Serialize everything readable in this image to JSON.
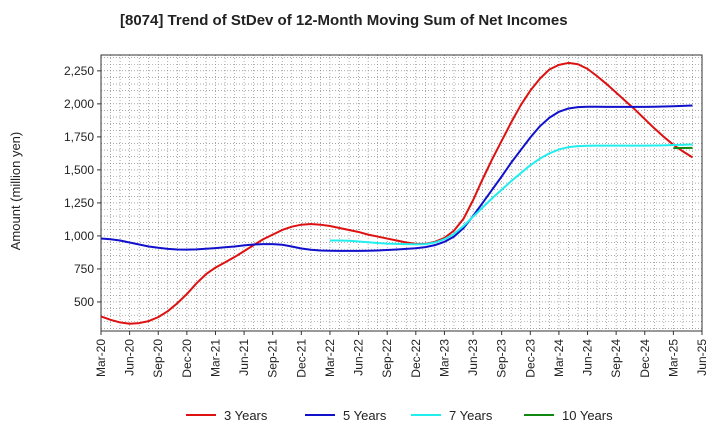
{
  "chart_data": {
    "type": "line",
    "title": "[8074]  Trend of StDev of 12-Month Moving Sum of Net Incomes",
    "ylabel": "Amount (million yen)",
    "xlabel": "",
    "ylim": [
      280,
      2370
    ],
    "yticks": [
      500,
      750,
      1000,
      1250,
      1500,
      1750,
      2000,
      2250
    ],
    "ytick_labels": [
      "500",
      "750",
      "1,000",
      "1,250",
      "1,500",
      "1,750",
      "2,000",
      "2,250"
    ],
    "x_range": [
      "2020-03",
      "2025-06"
    ],
    "xtick_labels": [
      "Mar-20",
      "Jun-20",
      "Sep-20",
      "Dec-20",
      "Mar-21",
      "Jun-21",
      "Sep-21",
      "Dec-21",
      "Mar-22",
      "Jun-22",
      "Sep-22",
      "Dec-22",
      "Mar-23",
      "Jun-23",
      "Sep-23",
      "Dec-23",
      "Mar-24",
      "Jun-24",
      "Sep-24",
      "Dec-24",
      "Mar-25",
      "Jun-25"
    ],
    "grid": true,
    "legend_position": "bottom",
    "series": [
      {
        "name": "3 Years",
        "color": "#dd1111",
        "points": [
          [
            "2020-03",
            390
          ],
          [
            "2020-04",
            365
          ],
          [
            "2020-05",
            345
          ],
          [
            "2020-06",
            335
          ],
          [
            "2020-07",
            340
          ],
          [
            "2020-08",
            355
          ],
          [
            "2020-09",
            385
          ],
          [
            "2020-10",
            430
          ],
          [
            "2020-11",
            490
          ],
          [
            "2020-12",
            560
          ],
          [
            "2021-01",
            640
          ],
          [
            "2021-02",
            710
          ],
          [
            "2021-03",
            760
          ],
          [
            "2021-04",
            800
          ],
          [
            "2021-05",
            840
          ],
          [
            "2021-06",
            885
          ],
          [
            "2021-07",
            930
          ],
          [
            "2021-08",
            975
          ],
          [
            "2021-09",
            1010
          ],
          [
            "2021-10",
            1045
          ],
          [
            "2021-11",
            1070
          ],
          [
            "2021-12",
            1085
          ],
          [
            "2022-01",
            1090
          ],
          [
            "2022-02",
            1085
          ],
          [
            "2022-03",
            1075
          ],
          [
            "2022-04",
            1060
          ],
          [
            "2022-05",
            1045
          ],
          [
            "2022-06",
            1030
          ],
          [
            "2022-07",
            1010
          ],
          [
            "2022-08",
            995
          ],
          [
            "2022-09",
            980
          ],
          [
            "2022-10",
            965
          ],
          [
            "2022-11",
            950
          ],
          [
            "2022-12",
            940
          ],
          [
            "2023-01",
            940
          ],
          [
            "2023-02",
            955
          ],
          [
            "2023-03",
            985
          ],
          [
            "2023-04",
            1040
          ],
          [
            "2023-05",
            1130
          ],
          [
            "2023-06",
            1270
          ],
          [
            "2023-07",
            1430
          ],
          [
            "2023-08",
            1580
          ],
          [
            "2023-09",
            1720
          ],
          [
            "2023-10",
            1860
          ],
          [
            "2023-11",
            1990
          ],
          [
            "2023-12",
            2100
          ],
          [
            "2024-01",
            2190
          ],
          [
            "2024-02",
            2260
          ],
          [
            "2024-03",
            2295
          ],
          [
            "2024-04",
            2310
          ],
          [
            "2024-05",
            2300
          ],
          [
            "2024-06",
            2265
          ],
          [
            "2024-07",
            2210
          ],
          [
            "2024-08",
            2150
          ],
          [
            "2024-09",
            2085
          ],
          [
            "2024-10",
            2020
          ],
          [
            "2024-11",
            1955
          ],
          [
            "2024-12",
            1885
          ],
          [
            "2025-01",
            1815
          ],
          [
            "2025-02",
            1750
          ],
          [
            "2025-03",
            1690
          ],
          [
            "2025-04",
            1640
          ],
          [
            "2025-05",
            1595
          ]
        ]
      },
      {
        "name": "5 Years",
        "color": "#1111cc",
        "points": [
          [
            "2020-03",
            980
          ],
          [
            "2020-04",
            975
          ],
          [
            "2020-05",
            965
          ],
          [
            "2020-06",
            950
          ],
          [
            "2020-07",
            935
          ],
          [
            "2020-08",
            920
          ],
          [
            "2020-09",
            910
          ],
          [
            "2020-10",
            902
          ],
          [
            "2020-11",
            897
          ],
          [
            "2020-12",
            896
          ],
          [
            "2021-01",
            898
          ],
          [
            "2021-02",
            903
          ],
          [
            "2021-03",
            908
          ],
          [
            "2021-04",
            914
          ],
          [
            "2021-05",
            920
          ],
          [
            "2021-06",
            928
          ],
          [
            "2021-07",
            935
          ],
          [
            "2021-08",
            938
          ],
          [
            "2021-09",
            938
          ],
          [
            "2021-10",
            933
          ],
          [
            "2021-11",
            920
          ],
          [
            "2021-12",
            905
          ],
          [
            "2022-01",
            895
          ],
          [
            "2022-02",
            890
          ],
          [
            "2022-03",
            888
          ],
          [
            "2022-04",
            887
          ],
          [
            "2022-05",
            887
          ],
          [
            "2022-06",
            887
          ],
          [
            "2022-07",
            888
          ],
          [
            "2022-08",
            890
          ],
          [
            "2022-09",
            893
          ],
          [
            "2022-10",
            897
          ],
          [
            "2022-11",
            902
          ],
          [
            "2022-12",
            907
          ],
          [
            "2023-01",
            915
          ],
          [
            "2023-02",
            930
          ],
          [
            "2023-03",
            955
          ],
          [
            "2023-04",
            995
          ],
          [
            "2023-05",
            1060
          ],
          [
            "2023-06",
            1150
          ],
          [
            "2023-07",
            1250
          ],
          [
            "2023-08",
            1350
          ],
          [
            "2023-09",
            1450
          ],
          [
            "2023-10",
            1555
          ],
          [
            "2023-11",
            1650
          ],
          [
            "2023-12",
            1745
          ],
          [
            "2024-01",
            1830
          ],
          [
            "2024-02",
            1895
          ],
          [
            "2024-03",
            1940
          ],
          [
            "2024-04",
            1965
          ],
          [
            "2024-05",
            1975
          ],
          [
            "2024-06",
            1978
          ],
          [
            "2024-07",
            1978
          ],
          [
            "2024-08",
            1977
          ],
          [
            "2024-09",
            1977
          ],
          [
            "2024-10",
            1977
          ],
          [
            "2024-11",
            1977
          ],
          [
            "2024-12",
            1977
          ],
          [
            "2025-01",
            1978
          ],
          [
            "2025-02",
            1980
          ],
          [
            "2025-03",
            1982
          ],
          [
            "2025-04",
            1985
          ],
          [
            "2025-05",
            1988
          ]
        ]
      },
      {
        "name": "7 Years",
        "color": "#22eeee",
        "points": [
          [
            "2022-03",
            965
          ],
          [
            "2022-04",
            965
          ],
          [
            "2022-05",
            963
          ],
          [
            "2022-06",
            958
          ],
          [
            "2022-07",
            952
          ],
          [
            "2022-08",
            946
          ],
          [
            "2022-09",
            942
          ],
          [
            "2022-10",
            940
          ],
          [
            "2022-11",
            938
          ],
          [
            "2022-12",
            936
          ],
          [
            "2023-01",
            938
          ],
          [
            "2023-02",
            950
          ],
          [
            "2023-03",
            975
          ],
          [
            "2023-04",
            1015
          ],
          [
            "2023-05",
            1075
          ],
          [
            "2023-06",
            1145
          ],
          [
            "2023-07",
            1215
          ],
          [
            "2023-08",
            1285
          ],
          [
            "2023-09",
            1350
          ],
          [
            "2023-10",
            1415
          ],
          [
            "2023-11",
            1475
          ],
          [
            "2023-12",
            1535
          ],
          [
            "2024-01",
            1585
          ],
          [
            "2024-02",
            1625
          ],
          [
            "2024-03",
            1655
          ],
          [
            "2024-04",
            1672
          ],
          [
            "2024-05",
            1680
          ],
          [
            "2024-06",
            1683
          ],
          [
            "2024-07",
            1684
          ],
          [
            "2024-08",
            1684
          ],
          [
            "2024-09",
            1684
          ],
          [
            "2024-10",
            1684
          ],
          [
            "2024-11",
            1684
          ],
          [
            "2024-12",
            1684
          ],
          [
            "2025-01",
            1685
          ],
          [
            "2025-02",
            1686
          ],
          [
            "2025-03",
            1688
          ],
          [
            "2025-04",
            1690
          ],
          [
            "2025-05",
            1692
          ]
        ]
      },
      {
        "name": "10 Years",
        "color": "#118811",
        "points": [
          [
            "2025-03",
            1665
          ],
          [
            "2025-04",
            1666
          ],
          [
            "2025-05",
            1667
          ]
        ]
      }
    ]
  }
}
